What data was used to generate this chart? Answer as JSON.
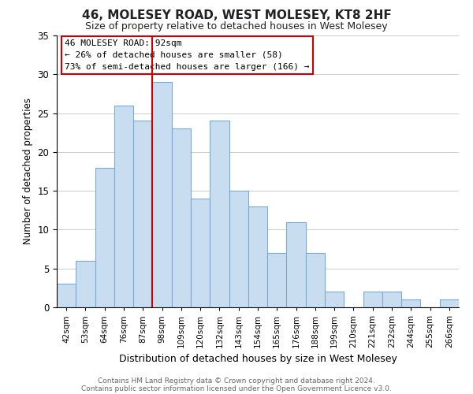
{
  "title": "46, MOLESEY ROAD, WEST MOLESEY, KT8 2HF",
  "subtitle": "Size of property relative to detached houses in West Molesey",
  "xlabel": "Distribution of detached houses by size in West Molesey",
  "ylabel": "Number of detached properties",
  "footer1": "Contains HM Land Registry data © Crown copyright and database right 2024.",
  "footer2": "Contains public sector information licensed under the Open Government Licence v3.0.",
  "bin_labels": [
    "42sqm",
    "53sqm",
    "64sqm",
    "76sqm",
    "87sqm",
    "98sqm",
    "109sqm",
    "120sqm",
    "132sqm",
    "143sqm",
    "154sqm",
    "165sqm",
    "176sqm",
    "188sqm",
    "199sqm",
    "210sqm",
    "221sqm",
    "232sqm",
    "244sqm",
    "255sqm",
    "266sqm"
  ],
  "bar_heights": [
    3,
    6,
    18,
    26,
    24,
    29,
    23,
    14,
    24,
    15,
    13,
    7,
    11,
    7,
    2,
    0,
    2,
    2,
    1,
    0,
    1
  ],
  "bar_color": "#c9ddf0",
  "bar_edge_color": "#7aaad4",
  "vline_x": 4.5,
  "vline_color": "#cc0000",
  "annotation_title": "46 MOLESEY ROAD: 92sqm",
  "annotation_line1": "← 26% of detached houses are smaller (58)",
  "annotation_line2": "73% of semi-detached houses are larger (166) →",
  "annotation_box_color": "#ffffff",
  "annotation_box_edge": "#cc0000",
  "ylim": [
    0,
    35
  ],
  "yticks": [
    0,
    5,
    10,
    15,
    20,
    25,
    30,
    35
  ],
  "bg_color": "#ffffff",
  "grid_color": "#cccccc"
}
